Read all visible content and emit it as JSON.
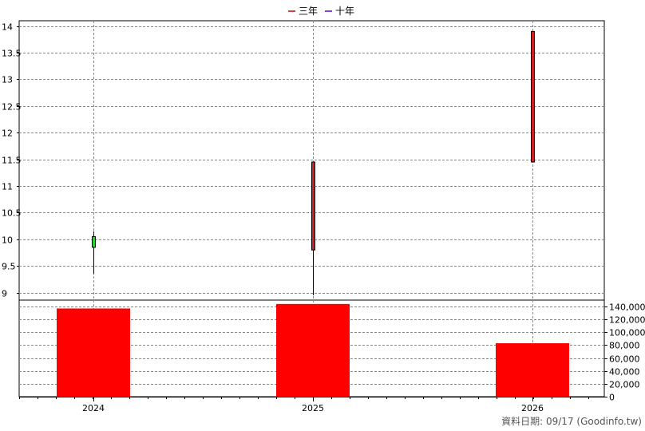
{
  "chart_data": {
    "type": "candlestick+bar",
    "legend": [
      {
        "label": "三年",
        "color": "#cc0000"
      },
      {
        "label": "十年",
        "color": "#6600cc"
      }
    ],
    "categories": [
      "2024",
      "2025",
      "2026"
    ],
    "price_axis": {
      "ticks": [
        "9",
        "9.5",
        "10",
        "10.5",
        "11",
        "11.5",
        "12",
        "12.5",
        "13",
        "13.5",
        "14"
      ],
      "tick_values": [
        9,
        9.5,
        10,
        10.5,
        11,
        11.5,
        12,
        12.5,
        13,
        13.5,
        14
      ],
      "ylim": [
        8.8,
        14.1
      ],
      "grid": true
    },
    "candles": [
      {
        "x": "2024",
        "open": 10.05,
        "close": 9.85,
        "high": 10.15,
        "low": 9.35,
        "color": "#33cc33"
      },
      {
        "x": "2025",
        "open": 9.8,
        "close": 11.45,
        "high": 11.45,
        "low": 8.95,
        "color": "#cc2222"
      },
      {
        "x": "2026",
        "open": 11.45,
        "close": 13.9,
        "high": 13.9,
        "low": 11.45,
        "color": "#cc2222"
      }
    ],
    "volume_axis": {
      "ticks": [
        "0",
        "20,000",
        "40,000",
        "60,000",
        "80,000",
        "100,000",
        "120,000",
        "140,000"
      ],
      "tick_values": [
        0,
        20000,
        40000,
        60000,
        80000,
        100000,
        120000,
        140000
      ],
      "ylim": [
        0,
        150000
      ]
    },
    "volumes": [
      {
        "x": "2024",
        "value": 137000,
        "color": "#ff0000"
      },
      {
        "x": "2025",
        "value": 144000,
        "color": "#ff0000"
      },
      {
        "x": "2026",
        "value": 83000,
        "color": "#ff0000"
      }
    ]
  },
  "footer": "資料日期: 09/17  (Goodinfo.tw)"
}
